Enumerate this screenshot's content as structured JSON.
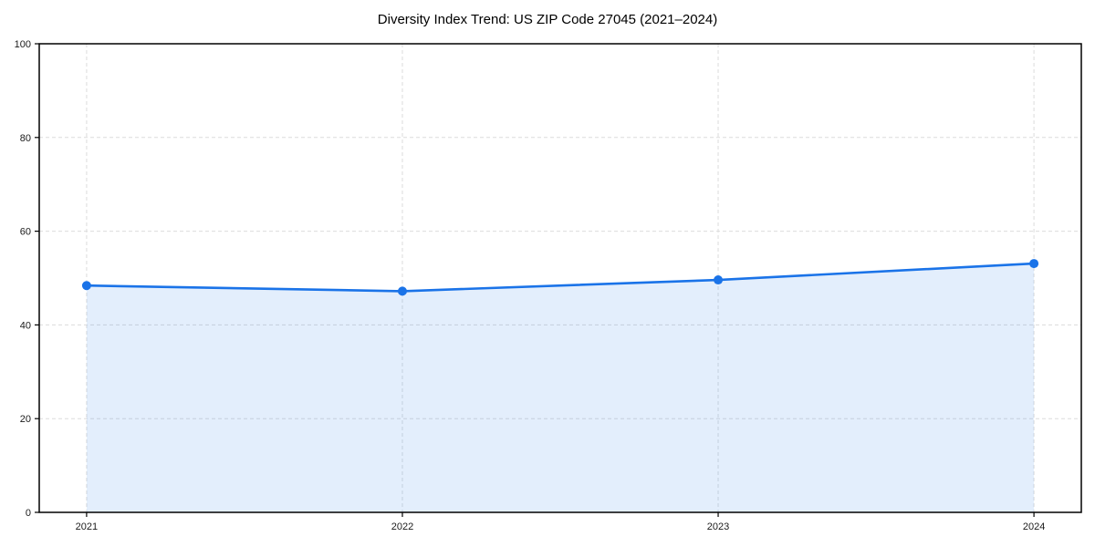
{
  "figure": {
    "background_color": "#ffffff"
  },
  "chart_data": {
    "type": "area",
    "title": "Diversity Index Trend: US ZIP Code 27045 (2021–2024)",
    "categories": [
      "2021",
      "2022",
      "2023",
      "2024"
    ],
    "series": [
      {
        "name": "Diversity Index",
        "values": [
          48.4,
          47.2,
          49.6,
          53.1
        ]
      }
    ],
    "xlabel": "",
    "ylabel": "",
    "ylim": [
      0,
      100
    ],
    "yticks": [
      0,
      20,
      40,
      60,
      80,
      100
    ],
    "grid": "dashed, both axes",
    "legend": "none",
    "marker": "circle",
    "marker_radius": 5,
    "line_width": 2.6,
    "line_color": "#1a73e8",
    "fill_color": "#1a73e8",
    "fill_opacity": 0.12,
    "grid_color": "#dcdcdc",
    "axis_color": "#000000",
    "tick_label_color": "#1a1a1a"
  }
}
